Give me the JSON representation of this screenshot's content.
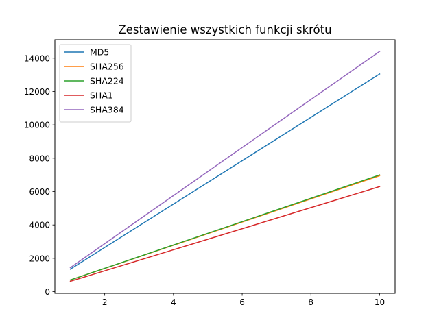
{
  "chart_data": {
    "type": "line",
    "title": "Zestawienie wszystkich funkcji skrótu",
    "xlabel": "",
    "ylabel": "",
    "xlim": [
      0.55,
      10.45
    ],
    "ylim": [
      -100,
      15100
    ],
    "xticks": [
      2,
      4,
      6,
      8,
      10
    ],
    "yticks": [
      0,
      2000,
      4000,
      6000,
      8000,
      10000,
      12000,
      14000
    ],
    "grid": false,
    "legend_position": "top-left",
    "x": [
      1,
      10
    ],
    "series": [
      {
        "name": "MD5",
        "color": "#1f77b4",
        "values": [
          1350,
          13050
        ]
      },
      {
        "name": "SHA256",
        "color": "#ff7f0e",
        "values": [
          700,
          6950
        ]
      },
      {
        "name": "SHA224",
        "color": "#2ca02c",
        "values": [
          700,
          7000
        ]
      },
      {
        "name": "SHA1",
        "color": "#d62728",
        "values": [
          620,
          6300
        ]
      },
      {
        "name": "SHA384",
        "color": "#9467bd",
        "values": [
          1440,
          14400
        ]
      }
    ]
  }
}
